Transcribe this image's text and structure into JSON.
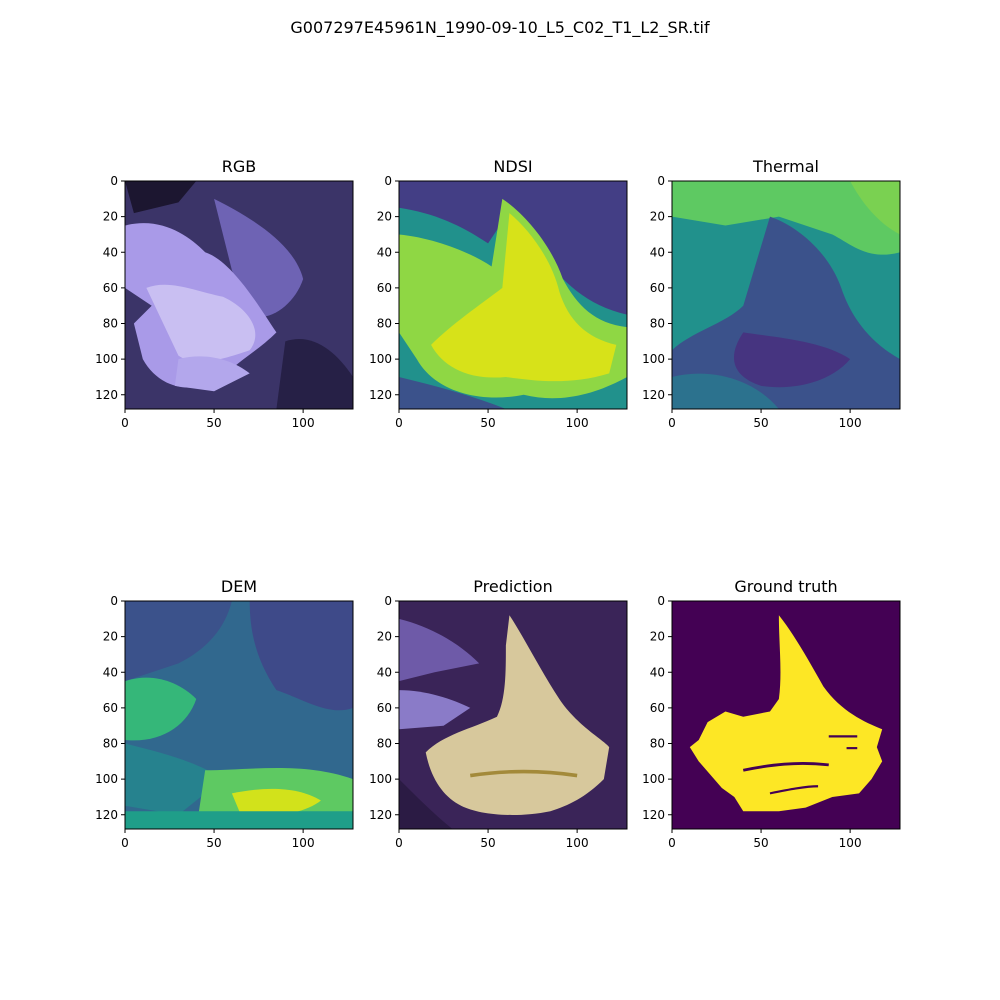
{
  "figure": {
    "title": "G007297E45961N_1990-09-10_L5_C02_T1_L2_SR.tif"
  },
  "colors": {
    "viridis": [
      "#440154",
      "#3b528b",
      "#21918c",
      "#5ec962",
      "#fde725"
    ],
    "rgb_panel": [
      "#1c1630",
      "#4a3f88",
      "#8f7fd6",
      "#c9bff2"
    ],
    "prediction_overlay": "#f3e5a8"
  },
  "chart_data": [
    {
      "type": "heatmap",
      "title": "RGB",
      "xlim": [
        0,
        128
      ],
      "ylim": [
        128,
        0
      ],
      "xticks": [
        "0",
        "50",
        "100"
      ],
      "yticks": [
        "0",
        "20",
        "40",
        "60",
        "80",
        "100",
        "120"
      ]
    },
    {
      "type": "heatmap",
      "title": "NDSI",
      "xlim": [
        0,
        128
      ],
      "ylim": [
        128,
        0
      ],
      "xticks": [
        "0",
        "50",
        "100"
      ],
      "yticks": [
        "0",
        "20",
        "40",
        "60",
        "80",
        "100",
        "120"
      ]
    },
    {
      "type": "heatmap",
      "title": "Thermal",
      "xlim": [
        0,
        128
      ],
      "ylim": [
        128,
        0
      ],
      "xticks": [
        "0",
        "50",
        "100"
      ],
      "yticks": [
        "0",
        "20",
        "40",
        "60",
        "80",
        "100",
        "120"
      ]
    },
    {
      "type": "heatmap",
      "title": "DEM",
      "xlim": [
        0,
        128
      ],
      "ylim": [
        128,
        0
      ],
      "xticks": [
        "0",
        "50",
        "100"
      ],
      "yticks": [
        "0",
        "20",
        "40",
        "60",
        "80",
        "100",
        "120"
      ]
    },
    {
      "type": "heatmap",
      "title": "Prediction",
      "xlim": [
        0,
        128
      ],
      "ylim": [
        128,
        0
      ],
      "xticks": [
        "0",
        "50",
        "100"
      ],
      "yticks": [
        "0",
        "20",
        "40",
        "60",
        "80",
        "100",
        "120"
      ]
    },
    {
      "type": "heatmap",
      "title": "Ground truth",
      "xlim": [
        0,
        128
      ],
      "ylim": [
        128,
        0
      ],
      "xticks": [
        "0",
        "50",
        "100"
      ],
      "yticks": [
        "0",
        "20",
        "40",
        "60",
        "80",
        "100",
        "120"
      ]
    }
  ]
}
